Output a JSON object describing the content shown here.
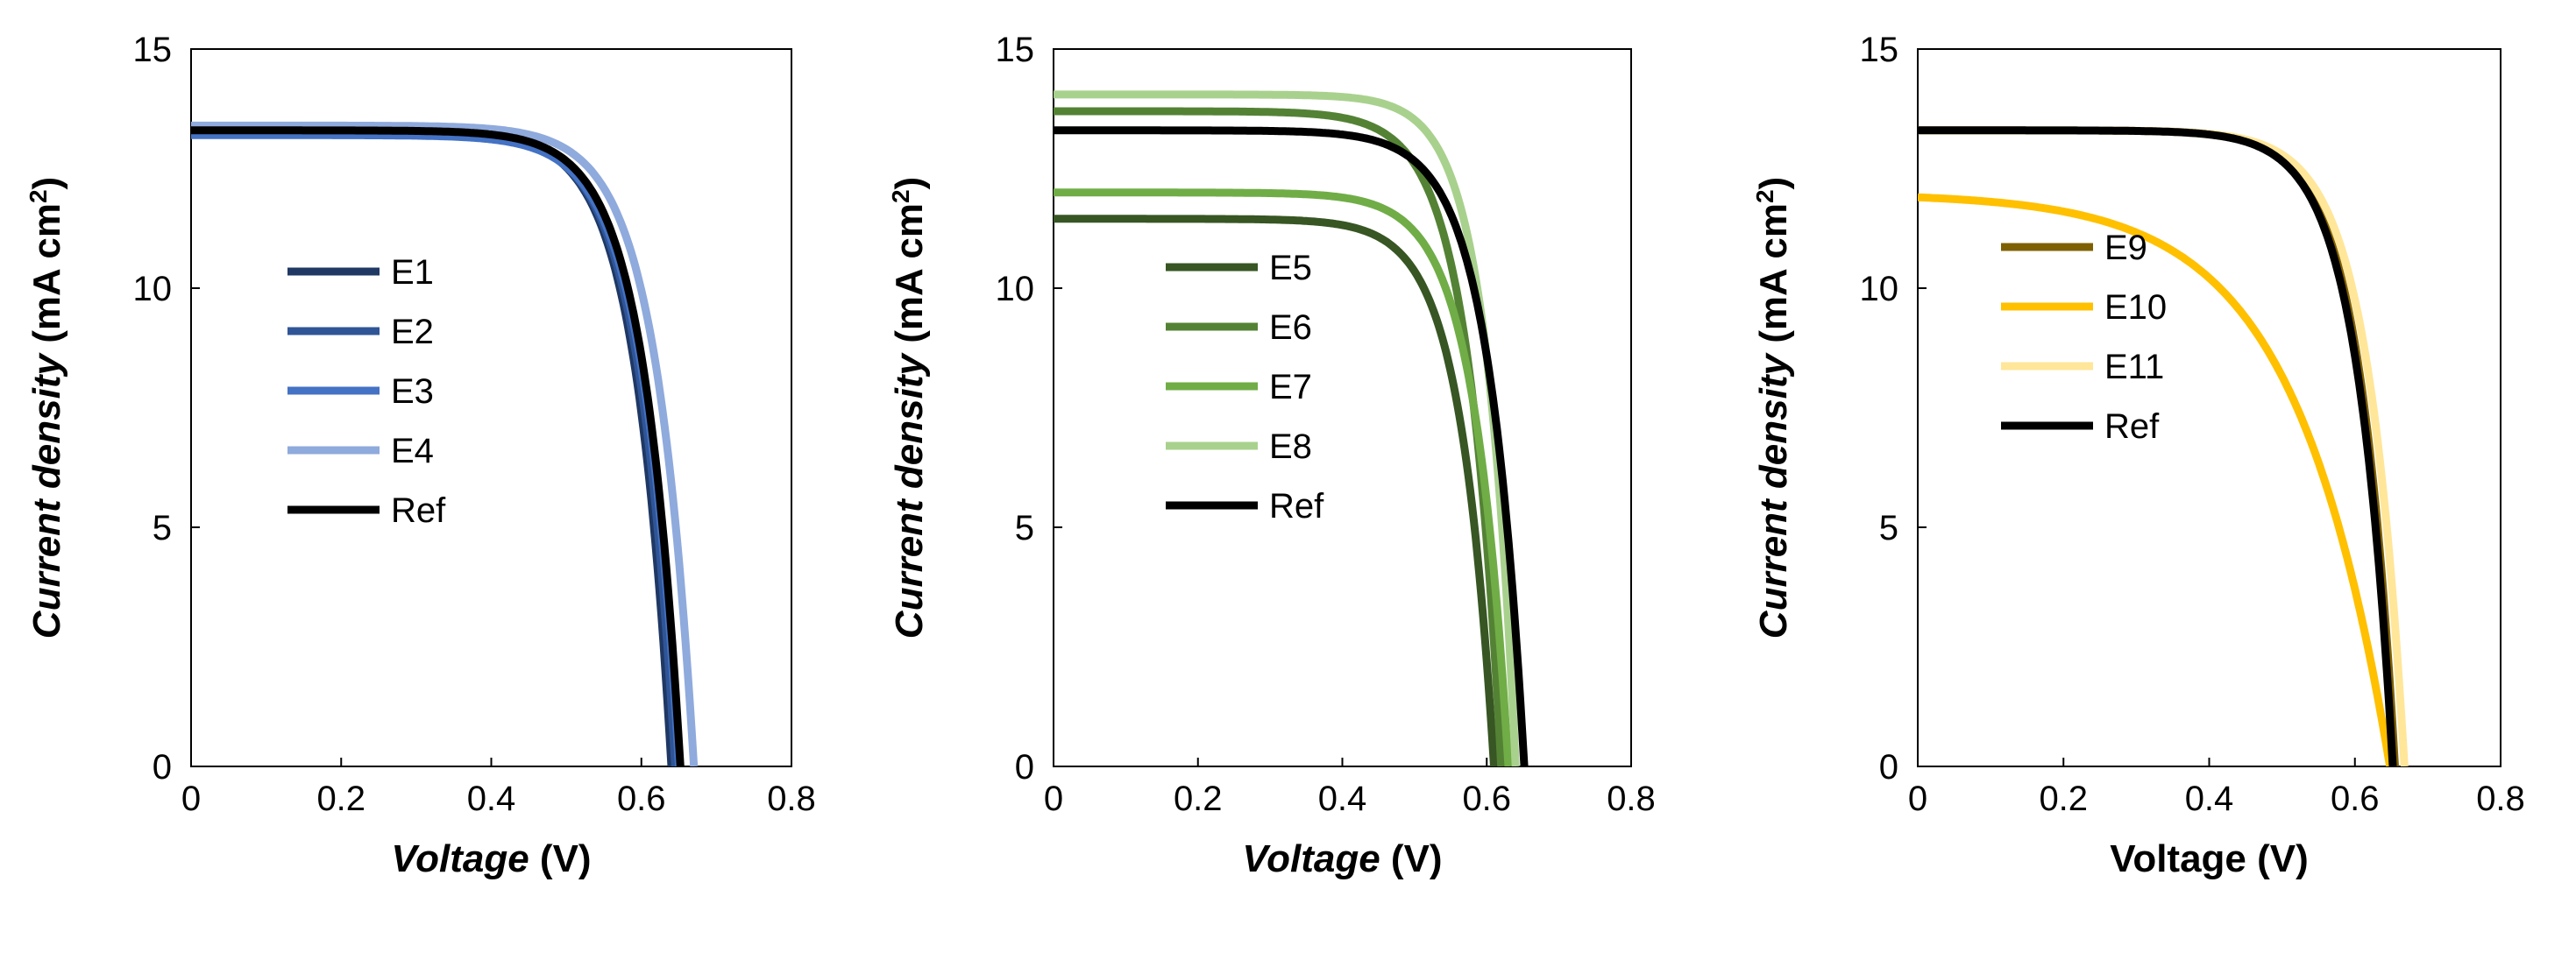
{
  "chart_data": [
    {
      "type": "line",
      "title": "",
      "xlabel_italic": "Voltage",
      "xlabel_rest": " (V)",
      "ylabel_italic": "Current density",
      "ylabel_rest": " (mA cm",
      "ylabel_sup": "2",
      "ylabel_close": ")",
      "xlim": [
        0,
        0.8
      ],
      "ylim": [
        0,
        15
      ],
      "xticks": [
        "0",
        "0.2",
        "0.4",
        "0.6",
        "0.8"
      ],
      "yticks": [
        "0",
        "5",
        "10",
        "15"
      ],
      "grid": false,
      "legend_position": "middle-left",
      "series": [
        {
          "name": "E1",
          "color": "#1f3864",
          "jsc": 13.3,
          "voc": 0.64,
          "knee": 0.46,
          "n": 13
        },
        {
          "name": "E2",
          "color": "#2f5597",
          "jsc": 13.25,
          "voc": 0.645,
          "knee": 0.465,
          "n": 13
        },
        {
          "name": "E3",
          "color": "#4472c4",
          "jsc": 13.2,
          "voc": 0.65,
          "knee": 0.47,
          "n": 13
        },
        {
          "name": "E4",
          "color": "#8faadc",
          "jsc": 13.4,
          "voc": 0.67,
          "knee": 0.49,
          "n": 13
        },
        {
          "name": "Ref",
          "color": "#000000",
          "jsc": 13.3,
          "voc": 0.652,
          "knee": 0.475,
          "n": 13
        }
      ]
    },
    {
      "type": "line",
      "title": "",
      "xlabel_italic": "Voltage",
      "xlabel_rest": " (V)",
      "ylabel_italic": "Current density",
      "ylabel_rest": " (mA cm",
      "ylabel_sup": "2",
      "ylabel_close": ")",
      "xlim": [
        0,
        0.8
      ],
      "ylim": [
        0,
        15
      ],
      "xticks": [
        "0",
        "0.2",
        "0.4",
        "0.6",
        "0.8"
      ],
      "yticks": [
        "0",
        "5",
        "10",
        "15"
      ],
      "grid": false,
      "legend_position": "middle-left",
      "series": [
        {
          "name": "E5",
          "color": "#375623",
          "jsc": 11.45,
          "voc": 0.61,
          "knee": 0.43,
          "n": 13
        },
        {
          "name": "E6",
          "color": "#548235",
          "jsc": 13.7,
          "voc": 0.62,
          "knee": 0.45,
          "n": 13
        },
        {
          "name": "E7",
          "color": "#70ad47",
          "jsc": 12.0,
          "voc": 0.63,
          "knee": 0.45,
          "n": 13
        },
        {
          "name": "E8",
          "color": "#a9d18e",
          "jsc": 14.05,
          "voc": 0.64,
          "knee": 0.5,
          "n": 15
        },
        {
          "name": "Ref",
          "color": "#000000",
          "jsc": 13.3,
          "voc": 0.652,
          "knee": 0.475,
          "n": 13
        }
      ]
    },
    {
      "type": "line",
      "title": "",
      "xlabel_italic": "",
      "xlabel_rest": "Voltage (V)",
      "ylabel_italic": "Current density",
      "ylabel_rest": " (mA cm",
      "ylabel_sup": "2",
      "ylabel_close": ")",
      "xlim": [
        0,
        0.8
      ],
      "ylim": [
        0,
        15
      ],
      "xticks": [
        "0",
        "0.2",
        "0.4",
        "0.6",
        "0.8"
      ],
      "yticks": [
        "0",
        "5",
        "10",
        "15"
      ],
      "grid": false,
      "legend_position": "top-left",
      "series": [
        {
          "name": "E9",
          "color": "#7f6000",
          "jsc": 13.3,
          "voc": 0.655,
          "knee": 0.48,
          "n": 13
        },
        {
          "name": "E10",
          "color": "#ffc000",
          "jsc": 11.9,
          "voc": 0.648,
          "knee": 0.3,
          "n": 5
        },
        {
          "name": "E11",
          "color": "#ffe699",
          "jsc": 13.3,
          "voc": 0.668,
          "knee": 0.49,
          "n": 13
        },
        {
          "name": "Ref",
          "color": "#000000",
          "jsc": 13.3,
          "voc": 0.652,
          "knee": 0.475,
          "n": 13
        }
      ]
    }
  ]
}
